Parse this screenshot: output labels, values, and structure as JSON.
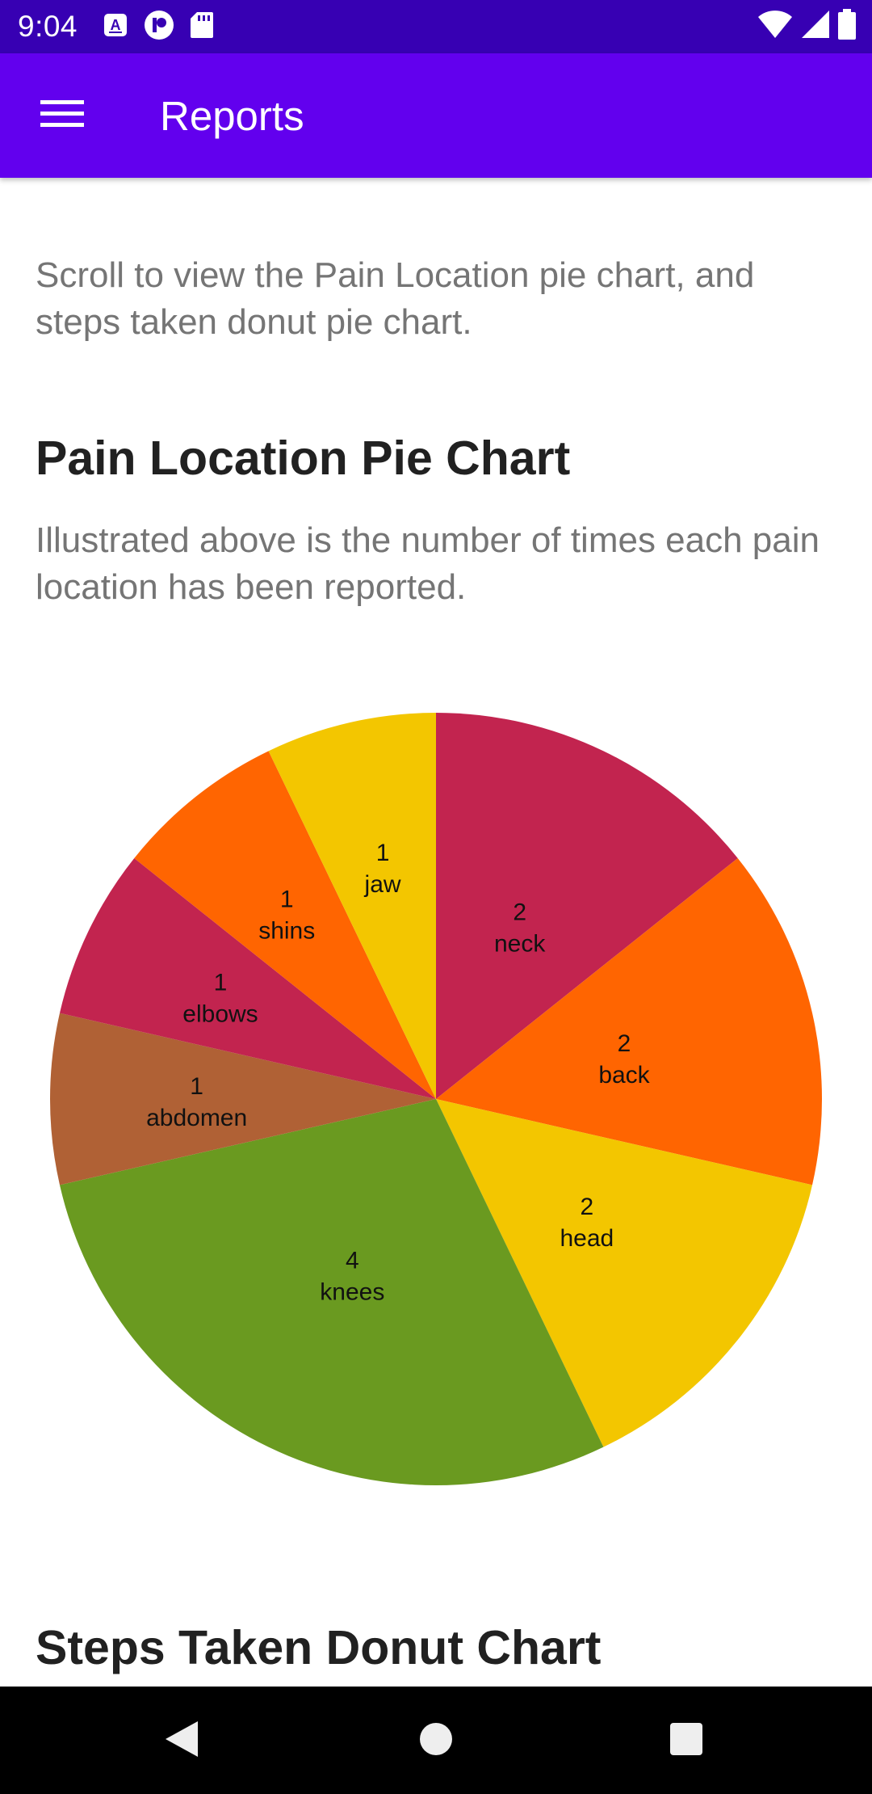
{
  "status_bar": {
    "time": "9:04",
    "left_icons": [
      "a-notification-icon",
      "record-icon",
      "sd-card-icon"
    ],
    "right_icons": [
      "wifi-icon",
      "cellular-signal-icon",
      "battery-icon"
    ],
    "background_color": "#3700b3"
  },
  "app_bar": {
    "title": "Reports",
    "menu_icon": "hamburger-menu-icon",
    "background_color": "#6200ee"
  },
  "content": {
    "intro": "Scroll to view the Pain Location pie chart, and steps taken donut pie chart.",
    "pie_heading": "Pain Location Pie Chart",
    "pie_description": "Illustrated above is the number of times each pain location has been reported.",
    "donut_heading": "Steps Taken Donut Chart"
  },
  "chart_data": {
    "type": "pie",
    "title": "",
    "series": [
      {
        "categories": [
          "neck",
          "back",
          "head",
          "knees",
          "abdomen",
          "elbows",
          "shins",
          "jaw"
        ],
        "values": [
          2,
          2,
          2,
          4,
          1,
          1,
          1,
          1
        ],
        "colors": [
          "#c2244f",
          "#ff6501",
          "#f3c600",
          "#6a9a20",
          "#b06135",
          "#c2244f",
          "#ff6501",
          "#f3c600"
        ]
      }
    ],
    "start_angle_degrees": 0,
    "direction": "clockwise",
    "slice_labels": "value above category, inside slice",
    "legend": "none"
  },
  "nav_bar": {
    "buttons": [
      "back-icon",
      "home-icon",
      "recents-icon"
    ]
  }
}
